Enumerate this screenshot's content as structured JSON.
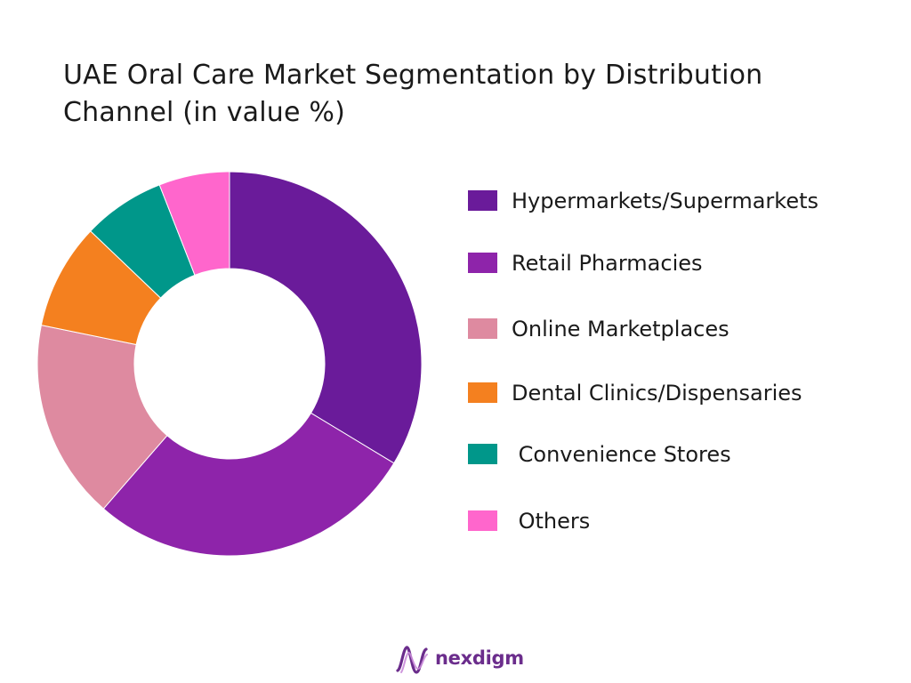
{
  "title_lines": [
    "UAE Oral Care Market Segmentation by Distribution",
    "Channel (in value %)"
  ],
  "chart_data": {
    "type": "pie",
    "style": "donut",
    "title": "UAE Oral Care Market Segmentation by Distribution Channel (in value %)",
    "legend_position": "right",
    "slices": [
      {
        "label": "Hypermarkets/Supermarkets",
        "value": 34,
        "color": "#6a1b9a"
      },
      {
        "label": "Retail Pharmacies",
        "value": 28,
        "color": "#8e24aa"
      },
      {
        "label": "Online Marketplaces",
        "value": 17,
        "color": "#de8aa0"
      },
      {
        "label": "Dental Clinics/Dispensaries",
        "value": 9,
        "color": "#f4801f"
      },
      {
        "label": "Convenience Stores",
        "value": 7,
        "color": "#00978a"
      },
      {
        "label": "Others",
        "value": 6,
        "color": "#ff66cc"
      }
    ]
  },
  "legend_labels": [
    "Hypermarkets/Supermarkets",
    "Retail Pharmacies",
    "Online Marketplaces",
    "Dental Clinics/Dispensaries",
    " Convenience Stores",
    " Others"
  ],
  "brand": {
    "name": "nexdigm",
    "icon": "nexdigm-logo-icon",
    "color": "#6b2d8c"
  }
}
